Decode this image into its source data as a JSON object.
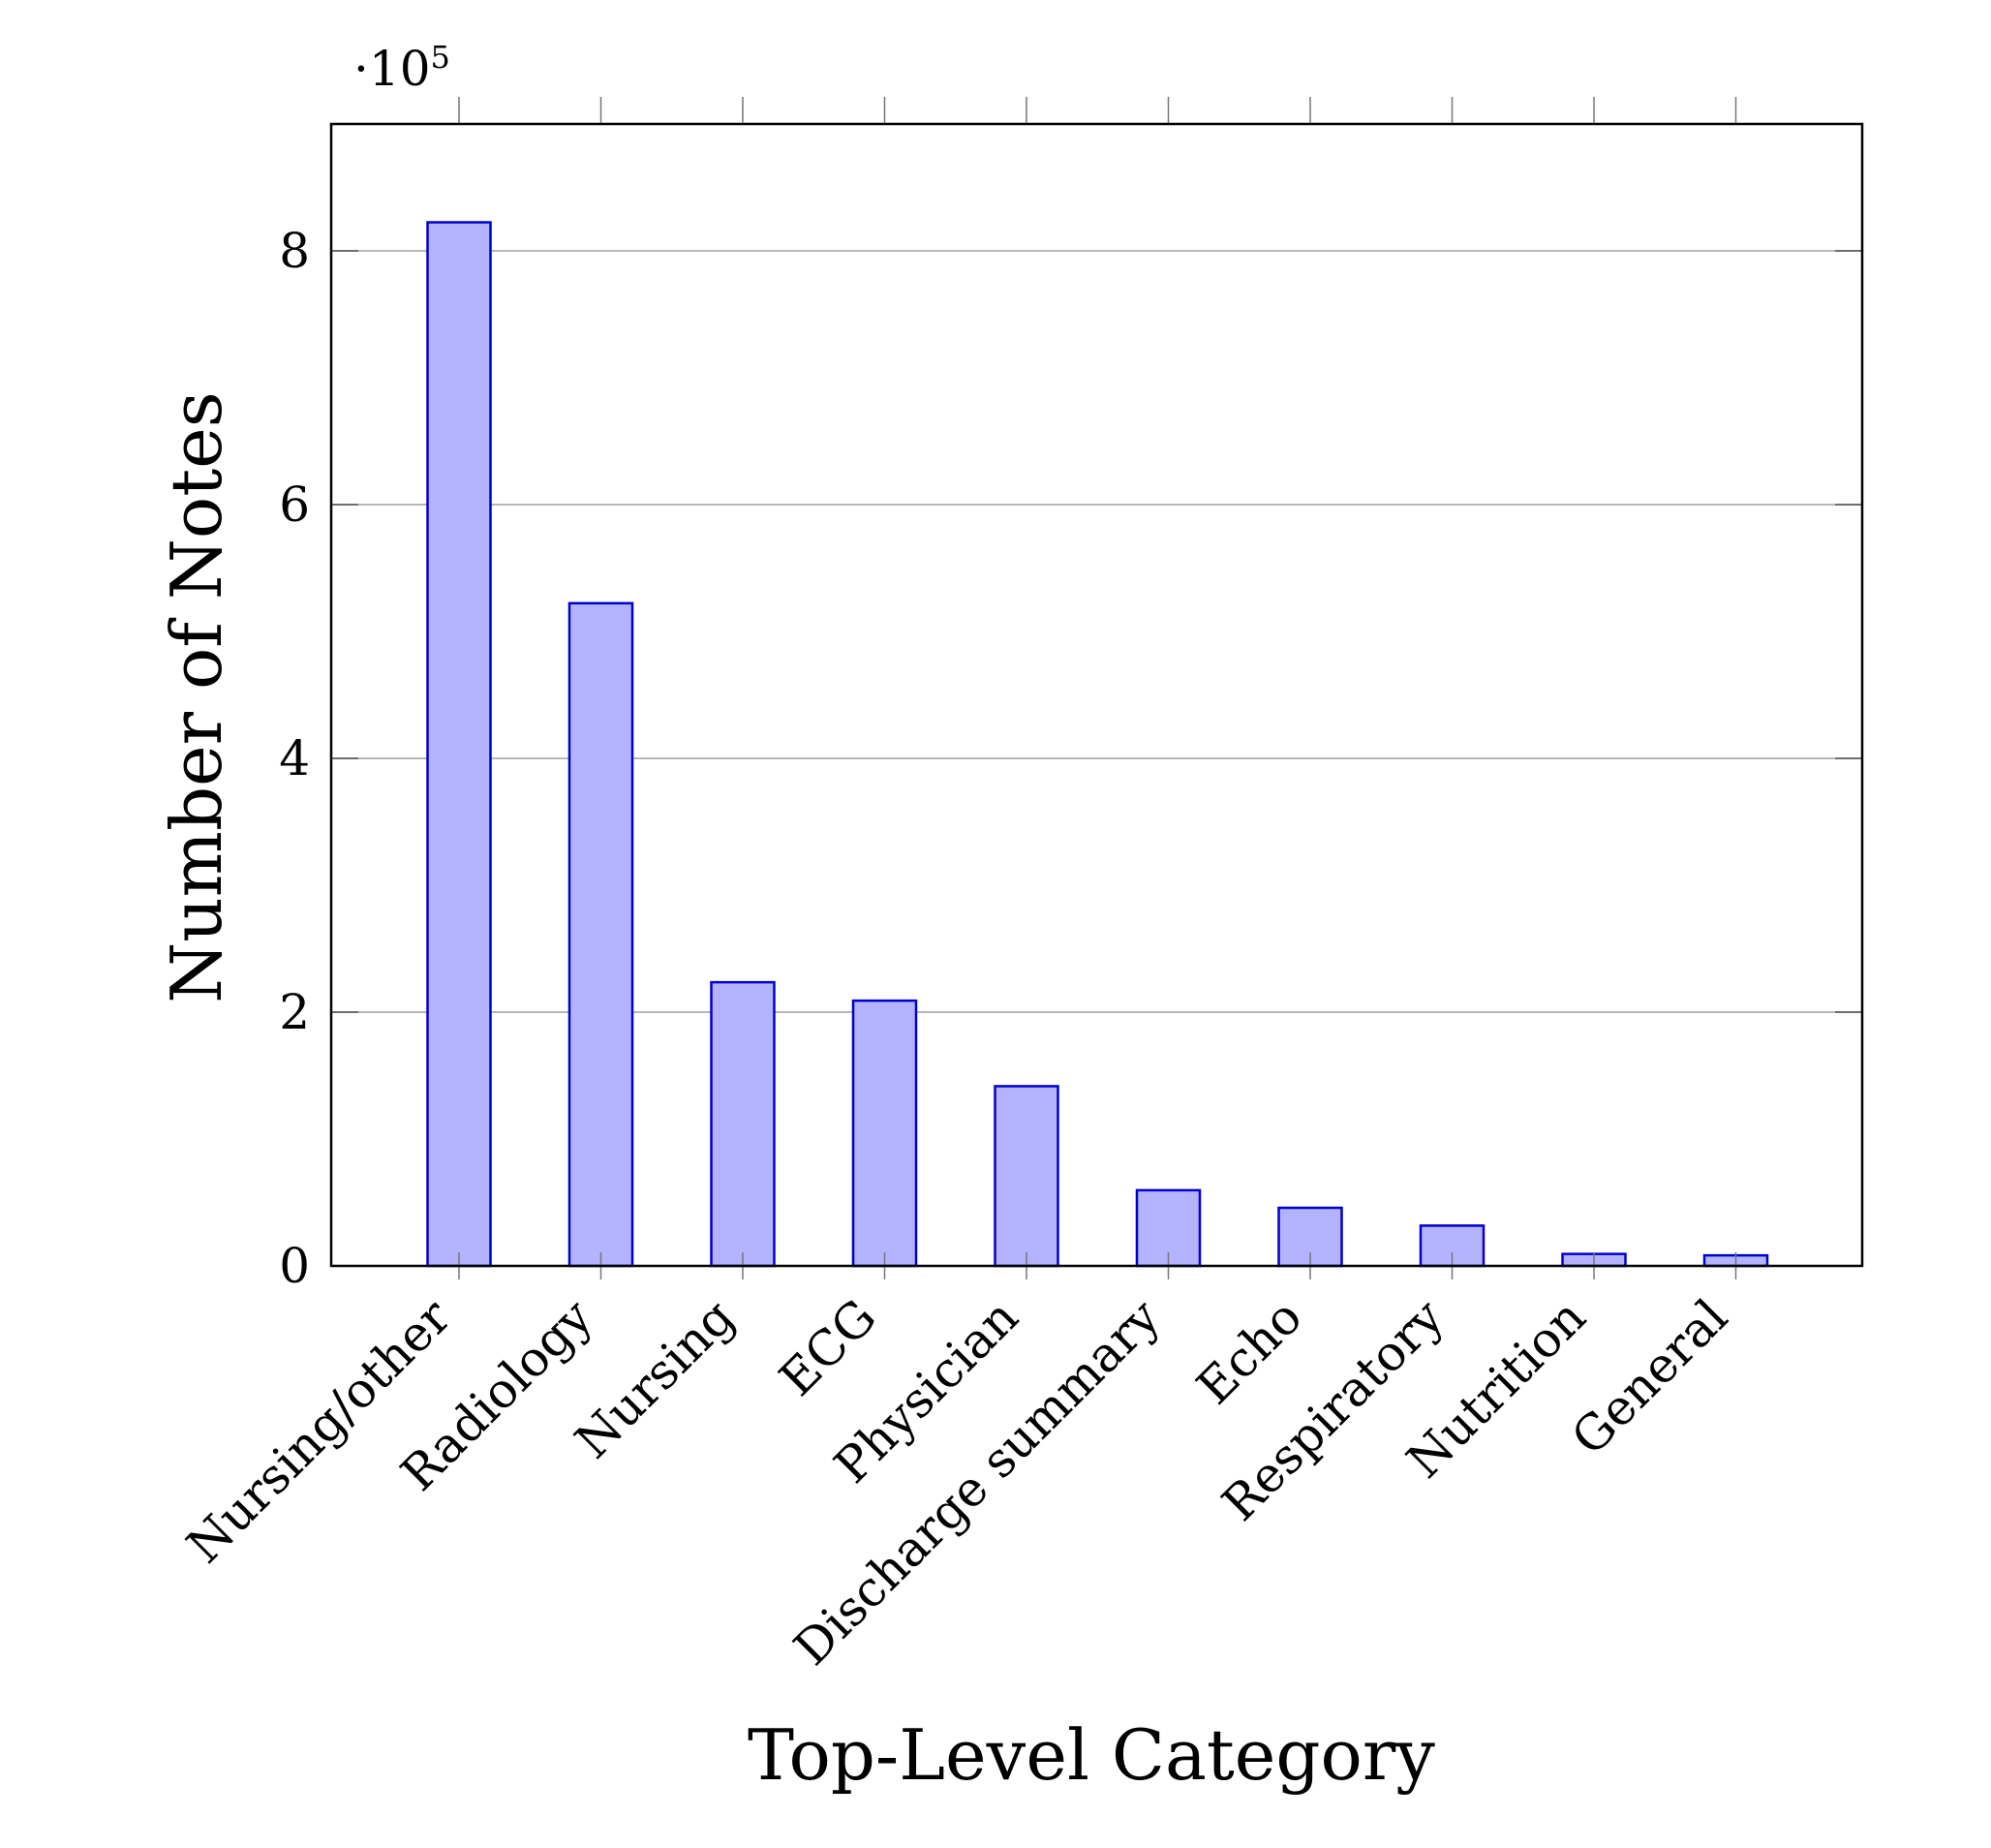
{
  "chart_data": {
    "type": "bar",
    "title": "",
    "xlabel": "Top-Level Category",
    "ylabel": "Number of Notes",
    "y_scale_label": {
      "prefix": "·10",
      "exponent": "5"
    },
    "categories": [
      "Nursing/other",
      "Radiology",
      "Nursing",
      "ECG",
      "Physician",
      "Discharge summary",
      "Echo",
      "Respiratory",
      "Nutrition",
      "General"
    ],
    "values": [
      822497,
      522279,
      223556,
      209051,
      141624,
      59652,
      45794,
      31739,
      9418,
      8301
    ],
    "ylim": [
      0,
      900000
    ],
    "yticks": [
      0,
      200000,
      400000,
      600000,
      800000
    ],
    "ytick_labels": [
      "0",
      "2",
      "4",
      "6",
      "8"
    ],
    "grid": "horizontal major",
    "colors": {
      "bar_fill": "#b3b3ff",
      "bar_stroke": "#0000cc",
      "grid": "#b8b8b8",
      "axis": "#000000"
    }
  }
}
